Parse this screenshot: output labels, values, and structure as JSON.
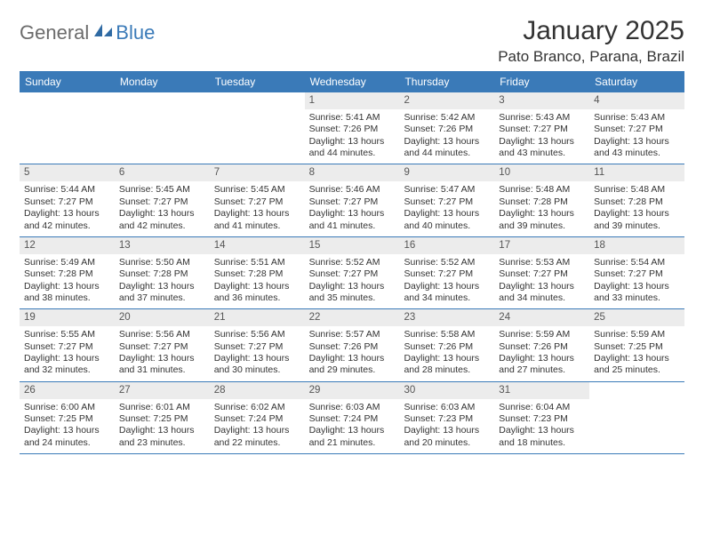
{
  "brand": {
    "part1": "General",
    "part2": "Blue"
  },
  "title": "January 2025",
  "location": "Pato Branco, Parana, Brazil",
  "weekdays": [
    "Sunday",
    "Monday",
    "Tuesday",
    "Wednesday",
    "Thursday",
    "Friday",
    "Saturday"
  ],
  "colors": {
    "header_bg": "#3a7ab8",
    "header_text": "#ffffff",
    "daynum_bg": "#ececec",
    "logo_gray": "#6b6b6b",
    "logo_blue": "#3a7ab8",
    "rule": "#3a7ab8"
  },
  "weeks": [
    [
      {
        "n": "",
        "sunrise": "",
        "sunset": "",
        "daylight": ""
      },
      {
        "n": "",
        "sunrise": "",
        "sunset": "",
        "daylight": ""
      },
      {
        "n": "",
        "sunrise": "",
        "sunset": "",
        "daylight": ""
      },
      {
        "n": "1",
        "sunrise": "Sunrise: 5:41 AM",
        "sunset": "Sunset: 7:26 PM",
        "daylight": "Daylight: 13 hours and 44 minutes."
      },
      {
        "n": "2",
        "sunrise": "Sunrise: 5:42 AM",
        "sunset": "Sunset: 7:26 PM",
        "daylight": "Daylight: 13 hours and 44 minutes."
      },
      {
        "n": "3",
        "sunrise": "Sunrise: 5:43 AM",
        "sunset": "Sunset: 7:27 PM",
        "daylight": "Daylight: 13 hours and 43 minutes."
      },
      {
        "n": "4",
        "sunrise": "Sunrise: 5:43 AM",
        "sunset": "Sunset: 7:27 PM",
        "daylight": "Daylight: 13 hours and 43 minutes."
      }
    ],
    [
      {
        "n": "5",
        "sunrise": "Sunrise: 5:44 AM",
        "sunset": "Sunset: 7:27 PM",
        "daylight": "Daylight: 13 hours and 42 minutes."
      },
      {
        "n": "6",
        "sunrise": "Sunrise: 5:45 AM",
        "sunset": "Sunset: 7:27 PM",
        "daylight": "Daylight: 13 hours and 42 minutes."
      },
      {
        "n": "7",
        "sunrise": "Sunrise: 5:45 AM",
        "sunset": "Sunset: 7:27 PM",
        "daylight": "Daylight: 13 hours and 41 minutes."
      },
      {
        "n": "8",
        "sunrise": "Sunrise: 5:46 AM",
        "sunset": "Sunset: 7:27 PM",
        "daylight": "Daylight: 13 hours and 41 minutes."
      },
      {
        "n": "9",
        "sunrise": "Sunrise: 5:47 AM",
        "sunset": "Sunset: 7:27 PM",
        "daylight": "Daylight: 13 hours and 40 minutes."
      },
      {
        "n": "10",
        "sunrise": "Sunrise: 5:48 AM",
        "sunset": "Sunset: 7:28 PM",
        "daylight": "Daylight: 13 hours and 39 minutes."
      },
      {
        "n": "11",
        "sunrise": "Sunrise: 5:48 AM",
        "sunset": "Sunset: 7:28 PM",
        "daylight": "Daylight: 13 hours and 39 minutes."
      }
    ],
    [
      {
        "n": "12",
        "sunrise": "Sunrise: 5:49 AM",
        "sunset": "Sunset: 7:28 PM",
        "daylight": "Daylight: 13 hours and 38 minutes."
      },
      {
        "n": "13",
        "sunrise": "Sunrise: 5:50 AM",
        "sunset": "Sunset: 7:28 PM",
        "daylight": "Daylight: 13 hours and 37 minutes."
      },
      {
        "n": "14",
        "sunrise": "Sunrise: 5:51 AM",
        "sunset": "Sunset: 7:28 PM",
        "daylight": "Daylight: 13 hours and 36 minutes."
      },
      {
        "n": "15",
        "sunrise": "Sunrise: 5:52 AM",
        "sunset": "Sunset: 7:27 PM",
        "daylight": "Daylight: 13 hours and 35 minutes."
      },
      {
        "n": "16",
        "sunrise": "Sunrise: 5:52 AM",
        "sunset": "Sunset: 7:27 PM",
        "daylight": "Daylight: 13 hours and 34 minutes."
      },
      {
        "n": "17",
        "sunrise": "Sunrise: 5:53 AM",
        "sunset": "Sunset: 7:27 PM",
        "daylight": "Daylight: 13 hours and 34 minutes."
      },
      {
        "n": "18",
        "sunrise": "Sunrise: 5:54 AM",
        "sunset": "Sunset: 7:27 PM",
        "daylight": "Daylight: 13 hours and 33 minutes."
      }
    ],
    [
      {
        "n": "19",
        "sunrise": "Sunrise: 5:55 AM",
        "sunset": "Sunset: 7:27 PM",
        "daylight": "Daylight: 13 hours and 32 minutes."
      },
      {
        "n": "20",
        "sunrise": "Sunrise: 5:56 AM",
        "sunset": "Sunset: 7:27 PM",
        "daylight": "Daylight: 13 hours and 31 minutes."
      },
      {
        "n": "21",
        "sunrise": "Sunrise: 5:56 AM",
        "sunset": "Sunset: 7:27 PM",
        "daylight": "Daylight: 13 hours and 30 minutes."
      },
      {
        "n": "22",
        "sunrise": "Sunrise: 5:57 AM",
        "sunset": "Sunset: 7:26 PM",
        "daylight": "Daylight: 13 hours and 29 minutes."
      },
      {
        "n": "23",
        "sunrise": "Sunrise: 5:58 AM",
        "sunset": "Sunset: 7:26 PM",
        "daylight": "Daylight: 13 hours and 28 minutes."
      },
      {
        "n": "24",
        "sunrise": "Sunrise: 5:59 AM",
        "sunset": "Sunset: 7:26 PM",
        "daylight": "Daylight: 13 hours and 27 minutes."
      },
      {
        "n": "25",
        "sunrise": "Sunrise: 5:59 AM",
        "sunset": "Sunset: 7:25 PM",
        "daylight": "Daylight: 13 hours and 25 minutes."
      }
    ],
    [
      {
        "n": "26",
        "sunrise": "Sunrise: 6:00 AM",
        "sunset": "Sunset: 7:25 PM",
        "daylight": "Daylight: 13 hours and 24 minutes."
      },
      {
        "n": "27",
        "sunrise": "Sunrise: 6:01 AM",
        "sunset": "Sunset: 7:25 PM",
        "daylight": "Daylight: 13 hours and 23 minutes."
      },
      {
        "n": "28",
        "sunrise": "Sunrise: 6:02 AM",
        "sunset": "Sunset: 7:24 PM",
        "daylight": "Daylight: 13 hours and 22 minutes."
      },
      {
        "n": "29",
        "sunrise": "Sunrise: 6:03 AM",
        "sunset": "Sunset: 7:24 PM",
        "daylight": "Daylight: 13 hours and 21 minutes."
      },
      {
        "n": "30",
        "sunrise": "Sunrise: 6:03 AM",
        "sunset": "Sunset: 7:23 PM",
        "daylight": "Daylight: 13 hours and 20 minutes."
      },
      {
        "n": "31",
        "sunrise": "Sunrise: 6:04 AM",
        "sunset": "Sunset: 7:23 PM",
        "daylight": "Daylight: 13 hours and 18 minutes."
      },
      {
        "n": "",
        "sunrise": "",
        "sunset": "",
        "daylight": ""
      }
    ]
  ]
}
